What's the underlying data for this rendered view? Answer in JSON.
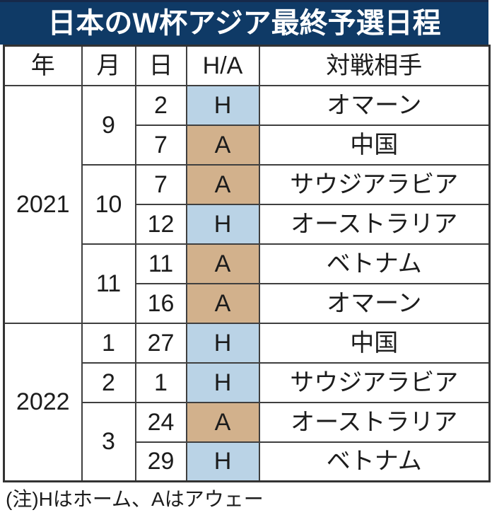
{
  "title": "日本のW杯アジア最終予選日程",
  "note": "(注)Hはホーム、Aはアウェー",
  "colors": {
    "title_bg": "#0f3a66",
    "title_top": "#16294a",
    "title_text": "#ffffff",
    "home_bg": "#bad3e6",
    "away_bg": "#d2b18c",
    "border": "#3f3f3f",
    "text": "#1c1c1c"
  },
  "legend": {
    "home_label": "H",
    "away_label": "A"
  },
  "chart_data": {
    "type": "table",
    "title": "日本のW杯アジア最終予選日程",
    "columns": [
      "年",
      "月",
      "日",
      "H/A",
      "対戦相手"
    ],
    "rows": [
      [
        "2021",
        "9",
        "2",
        "H",
        "オマーン"
      ],
      [
        "",
        "",
        "7",
        "A",
        "中国"
      ],
      [
        "",
        "10",
        "7",
        "A",
        "サウジアラビア"
      ],
      [
        "",
        "",
        "12",
        "H",
        "オーストラリア"
      ],
      [
        "",
        "11",
        "11",
        "A",
        "ベトナム"
      ],
      [
        "",
        "",
        "16",
        "A",
        "オマーン"
      ],
      [
        "2022",
        "1",
        "27",
        "H",
        "中国"
      ],
      [
        "",
        "2",
        "1",
        "H",
        "サウジアラビア"
      ],
      [
        "",
        "3",
        "24",
        "A",
        "オーストラリア"
      ],
      [
        "",
        "",
        "29",
        "H",
        "ベトナム"
      ]
    ],
    "merges": {
      "year_spans": [
        {
          "row": 0,
          "span": 6
        },
        {
          "row": 6,
          "span": 4
        }
      ],
      "month_spans": [
        {
          "row": 0,
          "span": 2
        },
        {
          "row": 2,
          "span": 2
        },
        {
          "row": 4,
          "span": 2
        },
        {
          "row": 6,
          "span": 1
        },
        {
          "row": 7,
          "span": 1
        },
        {
          "row": 8,
          "span": 2
        }
      ]
    },
    "note": "(注)Hはホーム、Aはアウェー"
  }
}
